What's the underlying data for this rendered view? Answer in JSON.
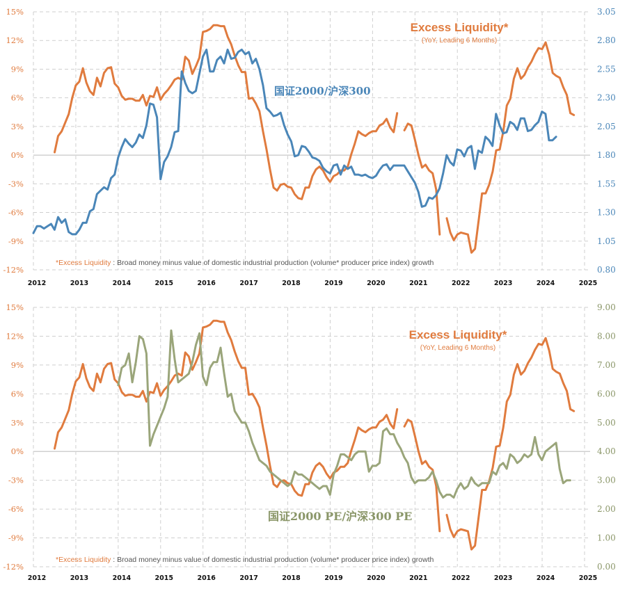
{
  "chart_data": [
    {
      "type": "line",
      "title": "Excess Liquidity*",
      "subtitle": "(YoY, Leading 6 Months)",
      "series_label": "国证2000/沪深300",
      "footnote_key": "*Excess  Liquidity",
      "footnote_text": " : Broad money minus value of domestic industrial production (volume* producer price index) growth",
      "x_ticks": [
        "2012",
        "2013",
        "2014",
        "2015",
        "2016",
        "2017",
        "2018",
        "2019",
        "2020",
        "2021",
        "2022",
        "2023",
        "2024",
        "2025"
      ],
      "xlim": [
        2012,
        2025
      ],
      "y_left": {
        "ticks": [
          "15%",
          "12%",
          "9%",
          "6%",
          "3%",
          "0%",
          "-3%",
          "-6%",
          "-9%",
          "-12%"
        ],
        "lim": [
          -12,
          15
        ]
      },
      "y_right": {
        "ticks": [
          "3.05",
          "2.80",
          "2.55",
          "2.30",
          "2.05",
          "1.80",
          "1.55",
          "1.30",
          "1.05",
          "0.80"
        ],
        "lim": [
          0.8,
          3.05
        ]
      },
      "grid": true,
      "colors": {
        "excess": "#e07b3e",
        "ratio": "#4a86b8"
      },
      "series": [
        {
          "name": "Excess Liquidity",
          "axis": "left",
          "segments": [
            {
              "x_start": 2012.5,
              "step": 0.0833,
              "values": [
                0.3,
                2.0,
                2.5,
                3.4,
                4.3,
                6.0,
                7.3,
                7.7,
                9.1,
                7.6,
                6.7,
                6.3,
                8.1,
                7.2,
                8.6,
                9.1,
                9.2,
                7.5,
                7.1,
                6.2,
                5.8,
                5.9,
                5.9,
                5.7,
                5.7,
                6.3,
                5.2,
                6.2,
                6.1,
                7.1,
                5.8,
                6.4,
                6.8,
                7.3,
                7.9,
                8.1,
                7.9,
                10.3,
                9.9,
                8.5,
                9.3,
                10.2,
                12.9,
                13.0,
                13.2,
                13.6,
                13.6,
                13.5,
                13.5,
                12.4,
                11.6,
                10.4,
                9.4,
                8.7,
                8.7,
                5.9,
                6.0,
                5.4,
                4.6,
                2.5,
                0.6,
                -1.5,
                -3.4,
                -3.7,
                -3.1,
                -3.0,
                -3.3,
                -3.4,
                -4.1,
                -4.5,
                -4.6,
                -3.4,
                -3.4,
                -2.2,
                -1.5,
                -1.2,
                -1.6,
                -2.3,
                -2.8,
                -2.2,
                -2.0,
                -1.6,
                -1.6,
                -1.2,
                0.1,
                1.2,
                2.5,
                2.2,
                2.0,
                2.3,
                2.5,
                2.5,
                3.1,
                3.3,
                3.8,
                2.9,
                2.4,
                4.4
              ]
            },
            {
              "x_start": 2020.75,
              "step": 0.0833,
              "values": [
                2.6,
                3.3,
                3.1,
                1.6,
                0.0,
                -1.3,
                -1.0,
                -1.6,
                -1.9,
                -3.6,
                -8.3
              ]
            },
            {
              "x_start": 2021.75,
              "step": 0.0833,
              "values": [
                -6.6,
                -8.1,
                -8.9,
                -8.3,
                -8.1,
                -8.2,
                -8.3,
                -10.2,
                -9.8,
                -6.9,
                -4.0,
                -4.0,
                -3.1,
                -1.7,
                0.5,
                0.6,
                2.5,
                5.2,
                5.9,
                8.0,
                9.1,
                8.0,
                8.4,
                9.2,
                9.8,
                10.6,
                11.2,
                11.1,
                11.8,
                10.5,
                8.6,
                8.3,
                8.1,
                7.1,
                6.3,
                4.4,
                4.2
              ]
            }
          ]
        },
        {
          "name": "国证2000/沪深300",
          "axis": "right",
          "segments": [
            {
              "x_start": 2012.0,
              "step": 0.0833,
              "values": [
                1.12,
                1.18,
                1.18,
                1.16,
                1.18,
                1.2,
                1.15,
                1.26,
                1.21,
                1.24,
                1.13,
                1.11,
                1.11,
                1.15,
                1.21,
                1.21,
                1.31,
                1.33,
                1.46,
                1.49,
                1.52,
                1.5,
                1.6,
                1.63,
                1.78,
                1.87,
                1.94,
                1.9,
                1.87,
                1.91,
                1.98,
                1.95,
                2.06,
                2.25,
                2.24,
                2.13,
                1.59,
                1.74,
                1.79,
                1.87,
                2.0,
                2.01,
                2.53,
                2.43,
                2.36,
                2.34,
                2.36,
                2.51,
                2.66,
                2.72,
                2.53,
                2.53,
                2.63,
                2.66,
                2.6,
                2.72,
                2.64,
                2.65,
                2.7,
                2.72,
                2.68,
                2.7,
                2.6,
                2.64,
                2.55,
                2.41,
                2.21,
                2.18,
                2.14,
                2.15,
                2.17,
                2.06,
                1.98,
                1.92,
                1.79,
                1.8,
                1.88,
                1.87,
                1.83,
                1.78,
                1.77,
                1.75,
                1.69,
                1.66,
                1.64,
                1.71,
                1.72,
                1.63,
                1.71,
                1.68,
                1.7,
                1.63,
                1.63,
                1.62,
                1.63,
                1.61,
                1.6,
                1.62,
                1.67,
                1.71,
                1.72,
                1.67,
                1.71,
                1.71,
                1.71,
                1.71,
                1.66,
                1.61,
                1.56,
                1.48,
                1.35,
                1.36,
                1.43,
                1.42,
                1.45,
                1.51,
                1.64,
                1.8,
                1.74,
                1.71,
                1.85,
                1.84,
                1.79,
                1.86,
                1.88,
                1.68,
                1.84,
                1.82,
                1.96,
                1.93,
                1.88,
                2.16,
                2.06,
                1.99,
                2.0,
                2.09,
                2.07,
                2.02,
                2.12,
                2.12,
                2.01,
                2.02,
                2.06,
                2.09,
                2.18,
                2.16,
                1.93,
                1.93,
                1.96
              ]
            }
          ]
        }
      ]
    },
    {
      "type": "line",
      "title": "Excess Liquidity*",
      "subtitle": "(YoY, Leading 6 Months)",
      "series_label": "国证2000 PE/沪深300 PE",
      "footnote_key": "*Excess  Liquidity",
      "footnote_text": " : Broad money minus value of domestic industrial production (volume* producer price index) growth",
      "x_ticks": [
        "2012",
        "2013",
        "2014",
        "2015",
        "2016",
        "2017",
        "2018",
        "2019",
        "2020",
        "2021",
        "2022",
        "2023",
        "2024",
        "2025"
      ],
      "xlim": [
        2012,
        2025
      ],
      "y_left": {
        "ticks": [
          "15%",
          "12%",
          "9%",
          "6%",
          "3%",
          "0%",
          "-3%",
          "-6%",
          "-9%",
          "-12%"
        ],
        "lim": [
          -12,
          15
        ]
      },
      "y_right": {
        "ticks": [
          "9.00",
          "8.00",
          "7.00",
          "6.00",
          "5.00",
          "4.00",
          "3.00",
          "2.00",
          "1.00",
          "0.00"
        ],
        "lim": [
          0,
          9
        ]
      },
      "grid": true,
      "colors": {
        "excess": "#e07b3e",
        "ratio": "#9aa57a"
      },
      "series": [
        {
          "name": "Excess Liquidity",
          "axis": "left",
          "segments": "same_as_top"
        },
        {
          "name": "国证2000 PE/沪深300 PE",
          "axis": "right",
          "segments": [
            {
              "x_start": 2014.0,
              "step": 0.0833,
              "values": [
                6.3,
                6.9,
                7.0,
                7.4,
                6.4,
                7.1,
                8.0,
                7.9,
                7.4,
                4.2,
                4.6,
                4.9,
                5.2,
                5.5,
                5.9,
                8.2,
                7.2,
                6.4,
                6.5,
                6.6,
                6.7,
                7.1,
                7.7,
                8.1,
                6.6,
                6.3,
                6.9,
                7.1,
                7.1,
                7.6,
                6.7,
                5.9,
                6.0,
                5.4,
                5.2,
                5.0,
                5.0,
                4.7,
                4.3,
                4.0,
                3.7,
                3.6,
                3.5,
                3.3,
                3.2,
                3.1,
                3.0,
                2.9,
                2.8,
                2.9,
                3.3,
                3.2,
                3.2,
                3.1,
                3.0,
                2.9,
                2.8,
                2.7,
                2.8,
                2.8,
                2.5,
                3.2,
                3.5,
                3.9,
                3.9,
                3.8,
                3.7,
                3.9,
                4.0,
                4.0,
                4.0,
                3.3,
                3.5,
                3.5,
                3.6,
                4.7,
                4.8,
                4.6,
                4.6,
                4.3,
                4.1,
                3.8,
                3.6,
                3.1,
                2.9,
                3.0,
                3.0,
                3.0,
                3.1,
                3.3,
                3.0,
                2.6,
                2.4,
                2.5,
                2.5,
                2.4,
                2.7,
                2.9,
                2.7,
                2.8,
                3.1,
                2.9,
                2.8,
                2.9,
                2.9,
                2.9,
                3.3,
                3.2,
                3.5,
                3.6,
                3.4,
                3.9,
                3.8,
                3.6,
                3.7,
                3.9,
                3.8,
                3.9,
                4.5,
                3.9,
                3.7,
                4.0,
                4.1,
                4.2,
                4.3,
                3.4,
                2.9,
                3.0,
                3.0
              ]
            }
          ]
        }
      ]
    }
  ]
}
